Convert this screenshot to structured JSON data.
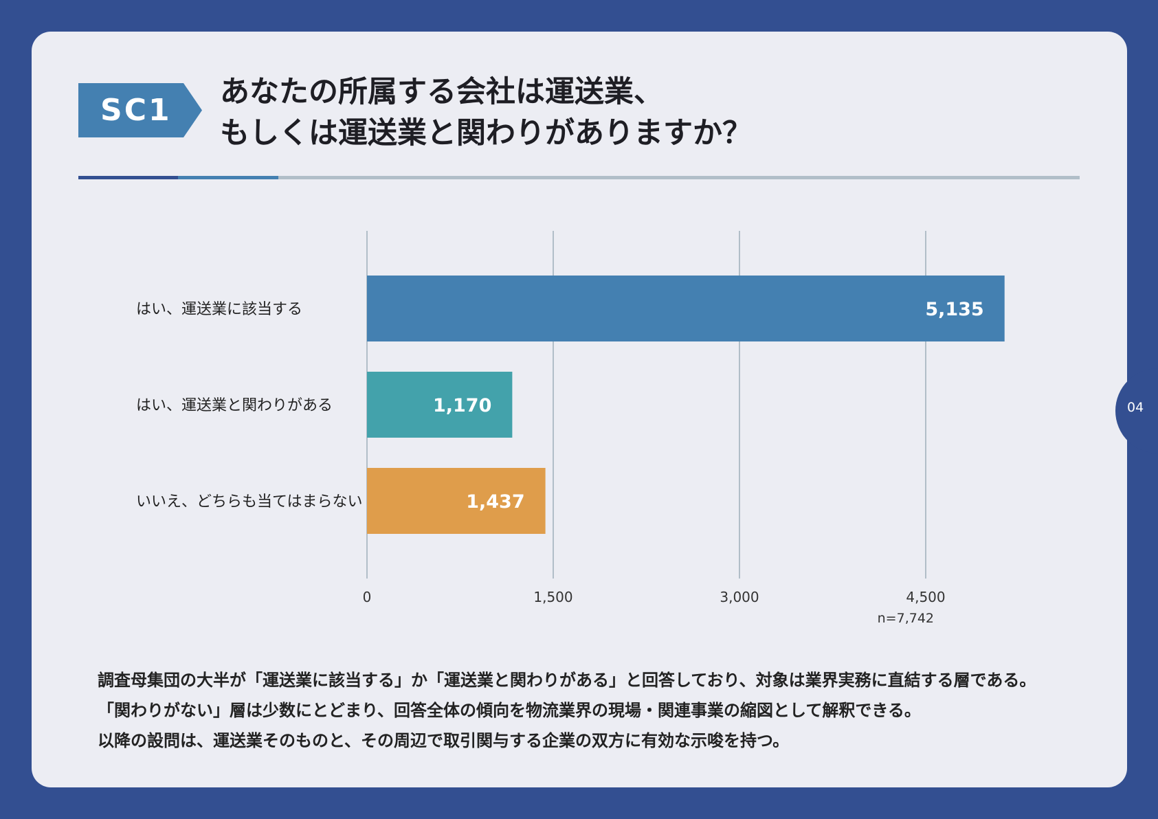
{
  "header": {
    "badge": "SC1",
    "title_line1": "あなたの所属する会社は運送業、",
    "title_line2": "もしくは運送業と関わりがありますか？"
  },
  "chart_data": {
    "type": "bar",
    "orientation": "horizontal",
    "categories": [
      "はい、運送業に該当する",
      "はい、運送業と関わりがある",
      "いいえ、どちらも当てはまらない"
    ],
    "values": [
      5135,
      1170,
      1437
    ],
    "value_labels": [
      "5,135",
      "1,170",
      "1,437"
    ],
    "colors": [
      "#4480b1",
      "#43a2ab",
      "#df9d4b"
    ],
    "xticks": [
      0,
      1500,
      3000,
      4500
    ],
    "xtick_labels": [
      "0",
      "1,500",
      "3,000",
      "4,500"
    ],
    "xlim": [
      0,
      5400
    ],
    "grid": true
  },
  "sample_note": "n=7,742",
  "summary": [
    "調査母集団の大半が「運送業に該当する」か「運送業と関わりがある」と回答しており、対象は業界実務に直結する層である。",
    "「関わりがない」層は少数にとどまり、回答全体の傾向を物流業界の現場・関連事業の縮図として解釈できる。",
    "以降の設問は、運送業そのものと、その周辺で取引関与する企業の双方に有効な示唆を持つ。"
  ],
  "page_number": "04"
}
